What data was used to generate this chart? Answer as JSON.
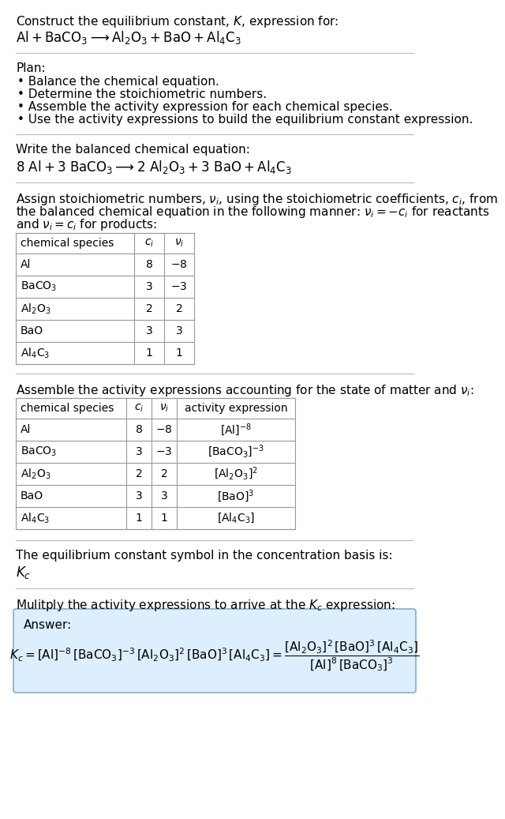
{
  "bg_color": "#ffffff",
  "text_color": "#000000",
  "title_line1": "Construct the equilibrium constant, $K$, expression for:",
  "title_line2": "$\\mathrm{Al + BaCO_3 \\longrightarrow Al_2O_3 + BaO + Al_4C_3}$",
  "plan_header": "Plan:",
  "plan_items": [
    "• Balance the chemical equation.",
    "• Determine the stoichiometric numbers.",
    "• Assemble the activity expression for each chemical species.",
    "• Use the activity expressions to build the equilibrium constant expression."
  ],
  "balanced_header": "Write the balanced chemical equation:",
  "balanced_eq": "$\\mathrm{8\\ Al + 3\\ BaCO_3 \\longrightarrow 2\\ Al_2O_3 + 3\\ BaO + Al_4C_3}$",
  "stoich_header_lines": [
    "Assign stoichiometric numbers, $\\nu_i$, using the stoichiometric coefficients, $c_i$, from",
    "the balanced chemical equation in the following manner: $\\nu_i = -c_i$ for reactants",
    "and $\\nu_i = c_i$ for products:"
  ],
  "table1_cols": [
    "chemical species",
    "$c_i$",
    "$\\nu_i$"
  ],
  "table1_rows": [
    [
      "Al",
      "8",
      "$-8$"
    ],
    [
      "$\\mathrm{BaCO_3}$",
      "3",
      "$-3$"
    ],
    [
      "$\\mathrm{Al_2O_3}$",
      "2",
      "2"
    ],
    [
      "BaO",
      "3",
      "3"
    ],
    [
      "$\\mathrm{Al_4C_3}$",
      "1",
      "1"
    ]
  ],
  "activity_header": "Assemble the activity expressions accounting for the state of matter and $\\nu_i$:",
  "table2_cols": [
    "chemical species",
    "$c_i$",
    "$\\nu_i$",
    "activity expression"
  ],
  "table2_rows": [
    [
      "Al",
      "8",
      "$-8$",
      "$[\\mathrm{Al}]^{-8}$"
    ],
    [
      "$\\mathrm{BaCO_3}$",
      "3",
      "$-3$",
      "$[\\mathrm{BaCO_3}]^{-3}$"
    ],
    [
      "$\\mathrm{Al_2O_3}$",
      "2",
      "2",
      "$[\\mathrm{Al_2O_3}]^{2}$"
    ],
    [
      "BaO",
      "3",
      "3",
      "$[\\mathrm{BaO}]^{3}$"
    ],
    [
      "$\\mathrm{Al_4C_3}$",
      "1",
      "1",
      "$[\\mathrm{Al_4C_3}]$"
    ]
  ],
  "kc_header": "The equilibrium constant symbol in the concentration basis is:",
  "kc_symbol": "$K_c$",
  "multiply_header": "Mulitply the activity expressions to arrive at the $K_c$ expression:",
  "answer_label": "Answer:",
  "answer_eq_full": "$K_c = [\\mathrm{Al}]^{-8}\\,[\\mathrm{BaCO_3}]^{-3}\\,[\\mathrm{Al_2O_3}]^{2}\\,[\\mathrm{BaO}]^{3}\\,[\\mathrm{Al_4C_3}] = \\dfrac{[\\mathrm{Al_2O_3}]^{2}\\,[\\mathrm{BaO}]^{3}\\,[\\mathrm{Al_4C_3}]}{[\\mathrm{Al}]^{8}\\,[\\mathrm{BaCO_3}]^{3}}$",
  "answer_box_color": "#ddeeff",
  "answer_box_border": "#89adc4",
  "separator_color": "#bbbbbb",
  "table_border_color": "#999999",
  "font_size_main": 11,
  "font_size_small": 10
}
